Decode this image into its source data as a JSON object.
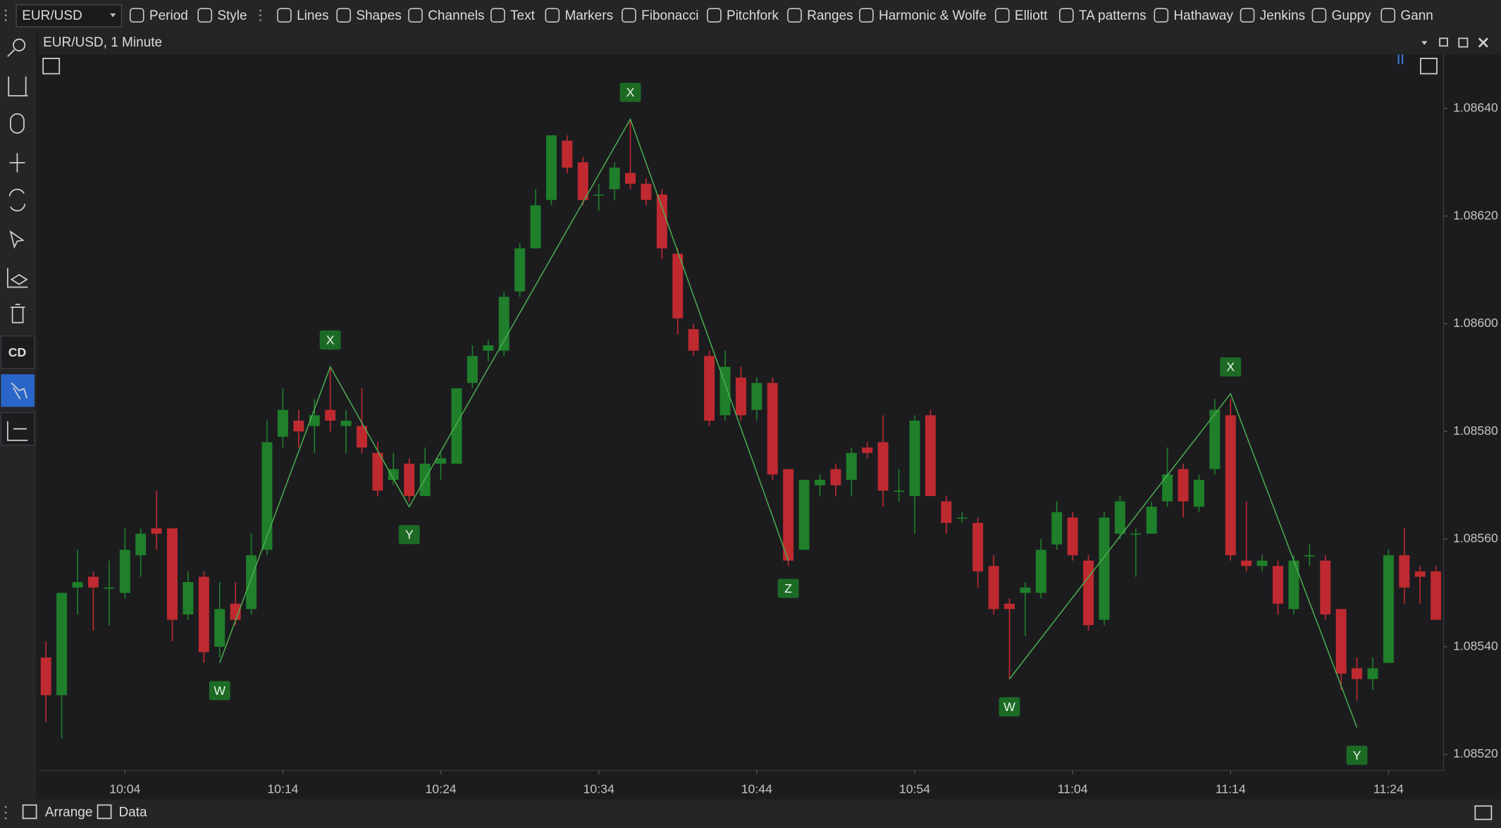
{
  "toolbar": {
    "symbol": "EUR/USD",
    "items": [
      "Period",
      "Style",
      "Lines",
      "Shapes",
      "Channels",
      "Text",
      "Markers",
      "Fibonacci",
      "Pitchfork",
      "Ranges",
      "Harmonic & Wolfe",
      "Elliott",
      "TA patterns",
      "Hathaway",
      "Jenkins",
      "Guppy",
      "Gann"
    ]
  },
  "sidebar": {
    "label": "CD"
  },
  "footer": {
    "items": [
      "Arrange",
      "Data"
    ]
  },
  "chart_data": {
    "type": "candlestick",
    "title": "EUR/USD, 1 Minute",
    "categories": [
      null,
      null,
      null,
      null,
      null,
      "10:04",
      null,
      null,
      null,
      null,
      null,
      null,
      null,
      null,
      null,
      "10:14",
      null,
      null,
      null,
      null,
      null,
      null,
      null,
      null,
      null,
      "10:24",
      null,
      null,
      null,
      null,
      null,
      null,
      null,
      null,
      null,
      "10:34",
      null,
      null,
      null,
      null,
      null,
      null,
      null,
      null,
      null,
      "10:44",
      null,
      null,
      null,
      null,
      null,
      null,
      null,
      null,
      null,
      "10:54",
      null,
      null,
      null,
      null,
      null,
      null,
      null,
      null,
      null,
      "11:04",
      null,
      null,
      null,
      null,
      null,
      null,
      null,
      null,
      null,
      "11:14",
      null,
      null,
      null,
      null,
      null,
      null,
      null,
      null,
      null,
      "11:24",
      null,
      null,
      null
    ],
    "open": [
      1.08538,
      1.08531,
      1.08551,
      1.08553,
      1.08551,
      1.0855,
      1.08557,
      1.08562,
      1.08562,
      1.08546,
      1.08553,
      1.0854,
      1.08548,
      1.08547,
      1.08558,
      1.08579,
      1.08582,
      1.08581,
      1.08584,
      1.08581,
      1.08581,
      1.08576,
      1.08571,
      1.08574,
      1.08568,
      1.08574,
      1.08574,
      1.08589,
      1.08595,
      1.08595,
      1.08606,
      1.08614,
      1.08623,
      1.08634,
      1.0863,
      1.08624,
      1.08625,
      1.08628,
      1.08626,
      1.08624,
      1.08613,
      1.08599,
      1.08594,
      1.08583,
      1.0859,
      1.08584,
      1.08589,
      1.08573,
      1.08558,
      1.0857,
      1.08573,
      1.08571,
      1.08577,
      1.08578,
      1.08569,
      1.08568,
      1.08583,
      1.08567,
      1.08564,
      1.08563,
      1.08555,
      1.08548,
      1.0855,
      1.0855,
      1.08559,
      1.08564,
      1.08556,
      1.08545,
      1.08561,
      1.08561,
      1.08561,
      1.08567,
      1.08573,
      1.08566,
      1.08573,
      1.08583,
      1.08556,
      1.08555,
      1.08555,
      1.08547,
      1.08557,
      1.08556,
      1.08547,
      1.08536,
      1.08534,
      1.08537,
      1.08557,
      1.08554,
      1.08554
    ],
    "high": [
      1.08541,
      1.0855,
      1.08558,
      1.08554,
      1.08556,
      1.08562,
      1.08562,
      1.08569,
      1.08562,
      1.08554,
      1.08554,
      1.08552,
      1.08552,
      1.08561,
      1.08582,
      1.08588,
      1.08584,
      1.08586,
      1.08592,
      1.08584,
      1.08588,
      1.08578,
      1.08576,
      1.08575,
      1.08577,
      1.08576,
      1.08588,
      1.08596,
      1.08597,
      1.08606,
      1.08615,
      1.08625,
      1.08635,
      1.08635,
      1.08631,
      1.08626,
      1.0863,
      1.08638,
      1.08627,
      1.08625,
      1.08614,
      1.086,
      1.08595,
      1.08595,
      1.08592,
      1.0859,
      1.0859,
      1.08573,
      1.08571,
      1.08572,
      1.08574,
      1.08577,
      1.08578,
      1.08583,
      1.08573,
      1.08583,
      1.08584,
      1.08568,
      1.08565,
      1.08564,
      1.08557,
      1.08549,
      1.08552,
      1.0856,
      1.08567,
      1.08565,
      1.08557,
      1.08565,
      1.08568,
      1.08562,
      1.08567,
      1.08577,
      1.08574,
      1.08572,
      1.08586,
      1.08586,
      1.08567,
      1.08557,
      1.08556,
      1.08557,
      1.08559,
      1.08557,
      1.08547,
      1.08538,
      1.08538,
      1.08558,
      1.08562,
      1.08555,
      1.08555
    ],
    "low": [
      1.08526,
      1.08523,
      1.08546,
      1.08543,
      1.08544,
      1.08549,
      1.08553,
      1.08558,
      1.08541,
      1.08545,
      1.08537,
      1.08538,
      1.08544,
      1.08546,
      1.08557,
      1.08577,
      1.08577,
      1.08576,
      1.0858,
      1.08576,
      1.08576,
      1.08568,
      1.0857,
      1.08567,
      1.08568,
      1.08571,
      1.08574,
      1.08588,
      1.08593,
      1.08594,
      1.08605,
      1.08614,
      1.08622,
      1.08628,
      1.08622,
      1.08621,
      1.08623,
      1.08625,
      1.08622,
      1.08612,
      1.08598,
      1.08594,
      1.08581,
      1.08582,
      1.08582,
      1.08582,
      1.08571,
      1.08555,
      1.08558,
      1.08568,
      1.08568,
      1.08568,
      1.08575,
      1.08566,
      1.08567,
      1.08561,
      1.08568,
      1.08561,
      1.08563,
      1.08551,
      1.08546,
      1.08534,
      1.08542,
      1.08549,
      1.08558,
      1.08556,
      1.08543,
      1.08544,
      1.0856,
      1.08553,
      1.08561,
      1.08566,
      1.08564,
      1.08565,
      1.08572,
      1.08556,
      1.08554,
      1.08554,
      1.08546,
      1.08546,
      1.08555,
      1.08545,
      1.08532,
      1.0853,
      1.08532,
      1.08537,
      1.08548,
      1.08548,
      1.08545
    ],
    "close": [
      1.08531,
      1.0855,
      1.08552,
      1.08551,
      1.08551,
      1.08558,
      1.08561,
      1.08561,
      1.08545,
      1.08552,
      1.08539,
      1.08547,
      1.08545,
      1.08557,
      1.08578,
      1.08584,
      1.0858,
      1.08583,
      1.08582,
      1.08582,
      1.08577,
      1.08569,
      1.08573,
      1.08568,
      1.08574,
      1.08575,
      1.08588,
      1.08594,
      1.08596,
      1.08605,
      1.08614,
      1.08622,
      1.08635,
      1.08629,
      1.08623,
      1.08624,
      1.08629,
      1.08626,
      1.08623,
      1.08614,
      1.08601,
      1.08595,
      1.08582,
      1.08592,
      1.08583,
      1.08589,
      1.08572,
      1.08556,
      1.08571,
      1.08571,
      1.0857,
      1.08576,
      1.08576,
      1.08569,
      1.08569,
      1.08582,
      1.08568,
      1.08563,
      1.08564,
      1.08554,
      1.08547,
      1.08547,
      1.08551,
      1.08558,
      1.08565,
      1.08557,
      1.08544,
      1.08564,
      1.08567,
      1.08561,
      1.08566,
      1.08572,
      1.08567,
      1.08571,
      1.08584,
      1.08557,
      1.08555,
      1.08556,
      1.08548,
      1.08556,
      1.08557,
      1.08546,
      1.08535,
      1.08534,
      1.08536,
      1.08557,
      1.08551,
      1.08553,
      1.08545
    ],
    "up_color": "#1f7f2a",
    "down_color": "#bf2a30",
    "ylim": [
      1.08517,
      1.0865
    ],
    "yticks": [
      {
        "value": 1.0864,
        "label": "1.08640"
      },
      {
        "value": 1.0862,
        "label": "1.08620"
      },
      {
        "value": 1.086,
        "label": "1.08600"
      },
      {
        "value": 1.0858,
        "label": "1.08580"
      },
      {
        "value": 1.0856,
        "label": "1.08560"
      },
      {
        "value": 1.0854,
        "label": "1.08540"
      },
      {
        "value": 1.0852,
        "label": "1.08520"
      }
    ],
    "grid": false,
    "patterns": [
      {
        "color": "#4caf50",
        "points": [
          {
            "label": "W",
            "x": "10:10",
            "y": 1.08537
          },
          {
            "label": "X",
            "x": "10:17",
            "y": 1.08592
          },
          {
            "label": "Y",
            "x": "10:22",
            "y": 1.08566
          },
          {
            "label": "X",
            "x": "10:36",
            "y": 1.08638
          },
          {
            "label": "Z",
            "x": "10:46",
            "y": 1.08556
          }
        ]
      },
      {
        "color": "#4caf50",
        "points": [
          {
            "label": "W",
            "x": "11:00",
            "y": 1.08534
          },
          {
            "label": "X",
            "x": "11:14",
            "y": 1.08587
          },
          {
            "label": "Y",
            "x": "11:22",
            "y": 1.08525
          }
        ]
      }
    ]
  }
}
